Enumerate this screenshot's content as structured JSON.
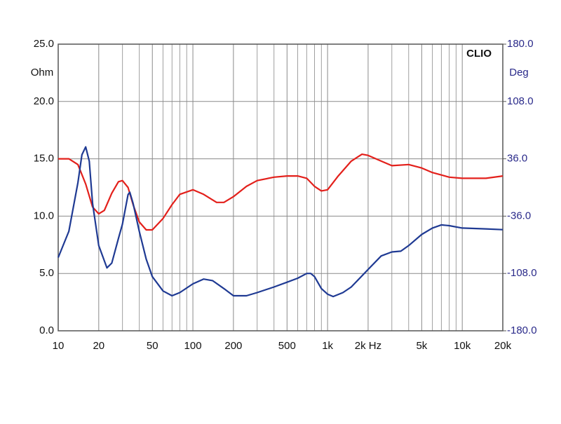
{
  "chart_data": {
    "type": "line",
    "title": "CLIO",
    "y_label": "Ohm",
    "y2_label": "Deg",
    "log_x": true,
    "grid": true,
    "xlim": [
      10,
      20000
    ],
    "xticks": [
      10,
      20,
      50,
      100,
      200,
      500,
      {
        "value": 1000,
        "label": "1k"
      },
      {
        "value": 2000,
        "label": "2k Hz"
      },
      {
        "value": 5000,
        "label": "5k"
      },
      {
        "value": 10000,
        "label": "10k"
      },
      {
        "value": 20000,
        "label": "20k"
      }
    ],
    "xminor": [
      30,
      40,
      60,
      70,
      80,
      90,
      300,
      400,
      600,
      700,
      800,
      900,
      3000,
      4000,
      6000,
      7000,
      8000,
      9000
    ],
    "ylim": [
      0,
      25
    ],
    "yticks": [
      {
        "value": 0,
        "label": "0.0"
      },
      {
        "value": 5,
        "label": "5.0"
      },
      {
        "value": 10,
        "label": "10.0"
      },
      {
        "value": 15,
        "label": "15.0"
      },
      {
        "value": 20,
        "label": "20.0"
      },
      {
        "value": 25,
        "label": "25.0"
      }
    ],
    "y2lim": [
      -180,
      180
    ],
    "y2ticks": [
      {
        "value": -180,
        "label": "-180.0"
      },
      {
        "value": -108,
        "label": "-108.0"
      },
      {
        "value": -36,
        "label": "-36.0"
      },
      {
        "value": 36,
        "label": "36.0"
      },
      {
        "value": 108,
        "label": "108.0"
      },
      {
        "value": 180,
        "label": "180.0"
      }
    ],
    "series": [
      {
        "color": "#e3201b",
        "x": [
          10,
          12,
          14,
          16,
          18,
          20,
          22,
          25,
          28,
          30,
          33,
          36,
          40,
          45,
          50,
          60,
          70,
          80,
          100,
          120,
          150,
          170,
          200,
          250,
          300,
          400,
          500,
          600,
          700,
          800,
          900,
          1000,
          1200,
          1500,
          1800,
          2000,
          2500,
          3000,
          4000,
          5000,
          6000,
          8000,
          10000,
          15000,
          20000
        ],
        "values": [
          15.0,
          15.0,
          14.5,
          12.8,
          10.8,
          10.2,
          10.5,
          12.0,
          13.0,
          13.1,
          12.5,
          11.0,
          9.5,
          8.8,
          8.8,
          9.8,
          11.0,
          11.9,
          12.3,
          11.9,
          11.2,
          11.2,
          11.7,
          12.6,
          13.1,
          13.4,
          13.5,
          13.5,
          13.3,
          12.6,
          12.2,
          12.3,
          13.5,
          14.8,
          15.4,
          15.3,
          14.8,
          14.4,
          14.5,
          14.2,
          13.8,
          13.4,
          13.3,
          13.3,
          13.5
        ]
      },
      {
        "color": "#1f3a93",
        "axis": "y2",
        "x": [
          10,
          12,
          14,
          15,
          16,
          17,
          18,
          20,
          23,
          25,
          28,
          30,
          33,
          34,
          36,
          40,
          45,
          50,
          60,
          70,
          80,
          100,
          120,
          140,
          170,
          200,
          250,
          300,
          400,
          500,
          600,
          700,
          750,
          800,
          900,
          1000,
          1100,
          1300,
          1500,
          2000,
          2500,
          3000,
          3500,
          4000,
          5000,
          6000,
          7000,
          8000,
          10000,
          15000,
          20000
        ],
        "values": [
          -88,
          -55,
          6,
          41,
          51,
          33,
          -20,
          -73,
          -101,
          -95,
          -64,
          -46,
          -9,
          -6,
          -20,
          -55,
          -90,
          -112,
          -130,
          -136,
          -132,
          -121,
          -115,
          -117,
          -127,
          -136,
          -136,
          -132,
          -125,
          -119,
          -114,
          -108,
          -108,
          -112,
          -127,
          -134,
          -137,
          -132,
          -125,
          -103,
          -86,
          -81,
          -80,
          -73,
          -59,
          -51,
          -47,
          -48,
          -51,
          -52,
          -53
        ]
      }
    ]
  }
}
